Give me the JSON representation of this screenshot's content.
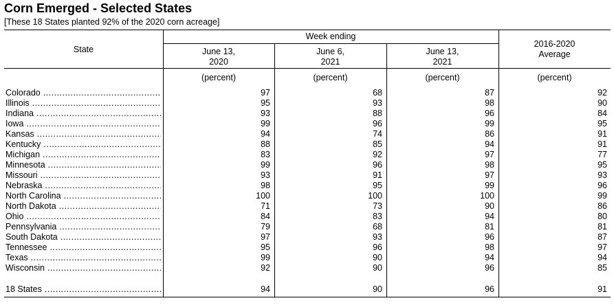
{
  "title": "Corn Emerged - Selected States",
  "subtitle": "[These 18 States planted 92% of the 2020 corn acreage]",
  "header": {
    "state": "State",
    "week_ending": "Week ending",
    "col1_line1": "June 13,",
    "col1_line2": "2020",
    "col2_line1": "June 6,",
    "col2_line2": "2021",
    "col3_line1": "June 13,",
    "col3_line2": "2021",
    "col4_line1": "2016-2020",
    "col4_line2": "Average",
    "unit": "(percent)"
  },
  "rows": [
    {
      "state": "Colorado",
      "v": [
        97,
        68,
        87,
        92
      ]
    },
    {
      "state": "Illinois",
      "v": [
        95,
        93,
        98,
        90
      ]
    },
    {
      "state": "Indiana",
      "v": [
        93,
        88,
        96,
        84
      ]
    },
    {
      "state": "Iowa",
      "v": [
        99,
        96,
        99,
        95
      ]
    },
    {
      "state": "Kansas",
      "v": [
        94,
        74,
        86,
        91
      ]
    },
    {
      "state": "Kentucky",
      "v": [
        88,
        85,
        94,
        91
      ]
    },
    {
      "state": "Michigan",
      "v": [
        83,
        92,
        97,
        77
      ]
    },
    {
      "state": "Minnesota",
      "v": [
        99,
        96,
        98,
        95
      ]
    },
    {
      "state": "Missouri",
      "v": [
        93,
        91,
        97,
        93
      ]
    },
    {
      "state": "Nebraska",
      "v": [
        98,
        95,
        99,
        96
      ]
    },
    {
      "state": "North Carolina",
      "v": [
        100,
        100,
        100,
        99
      ]
    },
    {
      "state": "North Dakota",
      "v": [
        71,
        73,
        90,
        86
      ]
    },
    {
      "state": "Ohio",
      "v": [
        84,
        83,
        94,
        80
      ]
    },
    {
      "state": "Pennsylvania",
      "v": [
        79,
        68,
        81,
        81
      ]
    },
    {
      "state": "South Dakota",
      "v": [
        97,
        93,
        96,
        87
      ]
    },
    {
      "state": "Tennessee",
      "v": [
        95,
        96,
        98,
        97
      ]
    },
    {
      "state": "Texas",
      "v": [
        99,
        90,
        94,
        94
      ]
    },
    {
      "state": "Wisconsin",
      "v": [
        92,
        90,
        96,
        85
      ]
    }
  ],
  "total": {
    "state": "18 States",
    "v": [
      94,
      90,
      96,
      91
    ]
  }
}
